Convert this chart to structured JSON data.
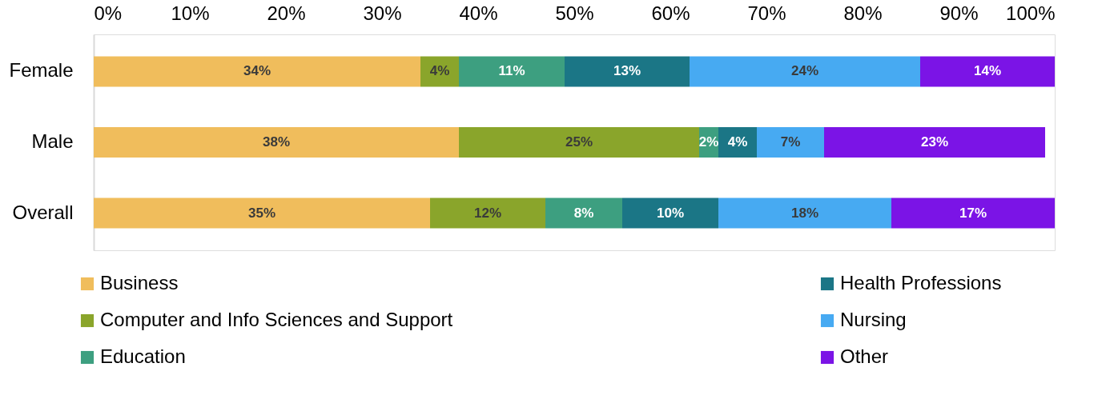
{
  "chart_data": {
    "type": "bar",
    "orientation": "horizontal",
    "stacked": true,
    "categories": [
      "Female",
      "Male",
      "Overall"
    ],
    "xlim": [
      0,
      100
    ],
    "xticks": [
      {
        "value": 0,
        "label": "0%"
      },
      {
        "value": 10,
        "label": "10%"
      },
      {
        "value": 20,
        "label": "20%"
      },
      {
        "value": 30,
        "label": "30%"
      },
      {
        "value": 40,
        "label": "40%"
      },
      {
        "value": 50,
        "label": "50%"
      },
      {
        "value": 60,
        "label": "60%"
      },
      {
        "value": 70,
        "label": "70%"
      },
      {
        "value": 80,
        "label": "80%"
      },
      {
        "value": 90,
        "label": "90%"
      },
      {
        "value": 100,
        "label": "100%"
      }
    ],
    "series": [
      {
        "name": "Business",
        "color": "#f0bd5c",
        "values": [
          34,
          38,
          35
        ],
        "value_labels": [
          "34%",
          "38%",
          "35%"
        ]
      },
      {
        "name": "Computer and Info Sciences and Support",
        "color": "#8aa52b",
        "values": [
          4,
          25,
          12
        ],
        "value_labels": [
          "4%",
          "25%",
          "12%"
        ]
      },
      {
        "name": "Education",
        "color": "#3d9f80",
        "values": [
          11,
          2,
          8
        ],
        "value_labels": [
          "11%",
          "2%",
          "8%"
        ]
      },
      {
        "name": "Health Professions",
        "color": "#1b7686",
        "values": [
          13,
          4,
          10
        ],
        "value_labels": [
          "13%",
          "4%",
          "10%"
        ]
      },
      {
        "name": "Nursing",
        "color": "#47aaf2",
        "values": [
          24,
          7,
          18
        ],
        "value_labels": [
          "24%",
          "7%",
          "18%"
        ]
      },
      {
        "name": "Other",
        "color": "#7b14e6",
        "values": [
          14,
          23,
          17
        ],
        "value_labels": [
          "14%",
          "23%",
          "17%"
        ]
      }
    ],
    "grid": false,
    "legend": "bottom"
  }
}
